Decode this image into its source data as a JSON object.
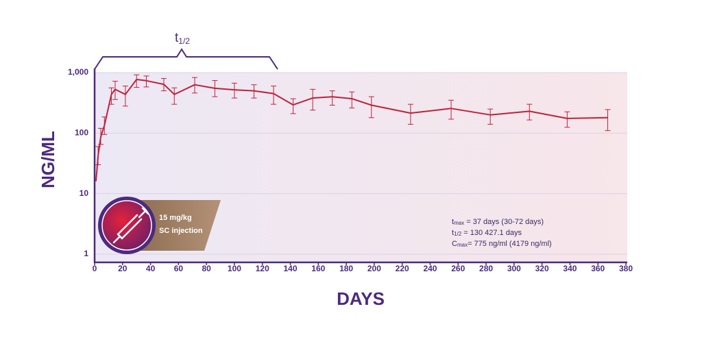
{
  "chart_data": {
    "type": "line",
    "x_label": "DAYS",
    "y_label": "NG/ML",
    "x": [
      1,
      2.5,
      4.4,
      7,
      12,
      14.7,
      22,
      30,
      37,
      49.5,
      57,
      71.6,
      86,
      100,
      114,
      128,
      142,
      156,
      170,
      184,
      198,
      226,
      255,
      283,
      311,
      338,
      367
    ],
    "values": [
      16,
      42,
      87,
      134,
      437,
      530,
      437,
      770,
      735,
      640,
      437,
      630,
      550,
      520,
      500,
      450,
      293,
      380,
      400,
      370,
      290,
      214,
      256,
      200,
      230,
      175,
      180
    ],
    "error_low": [
      null,
      30,
      65,
      95,
      300,
      360,
      280,
      570,
      580,
      500,
      300,
      460,
      400,
      380,
      380,
      300,
      210,
      240,
      290,
      260,
      180,
      140,
      170,
      140,
      165,
      125,
      110
    ],
    "error_high": [
      null,
      60,
      120,
      185,
      560,
      720,
      600,
      920,
      880,
      800,
      560,
      830,
      740,
      670,
      630,
      600,
      370,
      530,
      500,
      480,
      400,
      300,
      350,
      250,
      300,
      225,
      245
    ],
    "color": "#c0213a",
    "log_y": true,
    "grid": true,
    "xlim": [
      0,
      380
    ],
    "xticks": [
      0,
      20,
      40,
      60,
      80,
      100,
      120,
      140,
      160,
      180,
      200,
      220,
      240,
      260,
      280,
      300,
      320,
      340,
      360,
      380
    ],
    "ylim": [
      1,
      1000
    ],
    "yticks": [
      1,
      10,
      100,
      {
        "value": 1000,
        "label": "1,000"
      }
    ],
    "annotations": {
      "half_life": {
        "symbol": "t",
        "subscript": "1/2"
      },
      "dose": [
        "15 mg/kg",
        "SC injection"
      ],
      "stats": [
        {
          "symbol": "t",
          "subscript": "max",
          "text": " = 37 days (30-72 days)"
        },
        {
          "symbol": "t",
          "subscript": "1/2",
          "text": " = 130 427.1 days"
        },
        {
          "symbol": "C",
          "subscript": "max",
          "text": "= 775 ng/ml (4179 ng/ml)"
        }
      ]
    }
  }
}
